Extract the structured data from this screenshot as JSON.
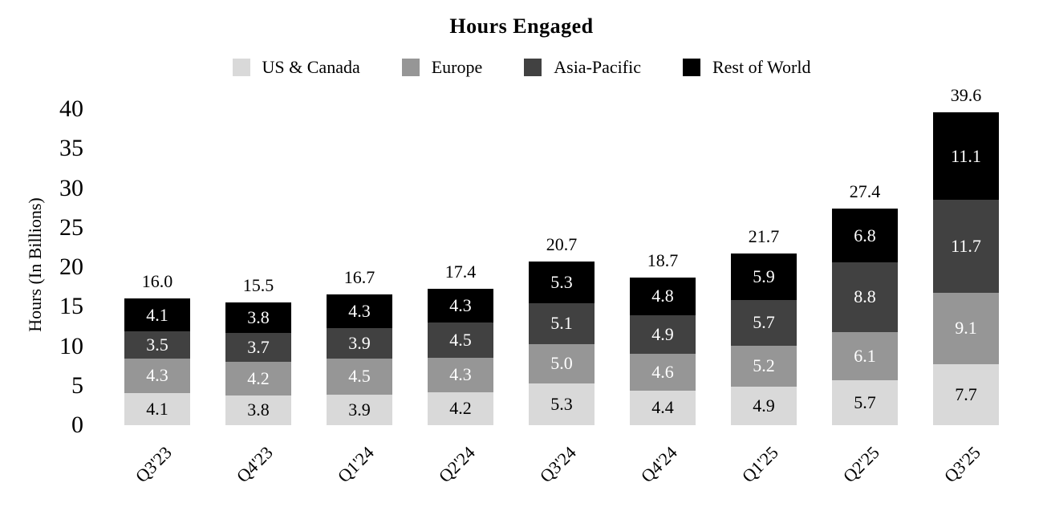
{
  "title": "Hours Engaged",
  "y_axis": {
    "label": "Hours (In Billions)",
    "ticks": [
      0,
      5,
      10,
      15,
      20,
      25,
      30,
      35,
      40
    ]
  },
  "chart_data": {
    "type": "bar",
    "stacked": true,
    "title": "Hours Engaged",
    "xlabel": "",
    "ylabel": "Hours (In Billions)",
    "ylim": [
      0,
      40
    ],
    "grid": false,
    "legend_position": "top-center",
    "categories": [
      "Q3'23",
      "Q4'23",
      "Q1'24",
      "Q2'24",
      "Q3'24",
      "Q4'24",
      "Q1'25",
      "Q2'25",
      "Q3'25"
    ],
    "series": [
      {
        "name": "US & Canada",
        "color": "#d9d9d9",
        "label_color": "#000000",
        "values": [
          4.1,
          3.8,
          3.9,
          4.2,
          5.3,
          4.4,
          4.9,
          5.7,
          7.7
        ]
      },
      {
        "name": "Europe",
        "color": "#969696",
        "label_color": "#ffffff",
        "values": [
          4.3,
          4.2,
          4.5,
          4.3,
          5.0,
          4.6,
          5.2,
          6.1,
          9.1
        ]
      },
      {
        "name": "Asia-Pacific",
        "color": "#414141",
        "label_color": "#ffffff",
        "values": [
          3.5,
          3.7,
          3.9,
          4.5,
          5.1,
          4.9,
          5.7,
          8.8,
          11.7
        ]
      },
      {
        "name": "Rest of World",
        "color": "#000000",
        "label_color": "#ffffff",
        "values": [
          4.1,
          3.8,
          4.3,
          4.3,
          5.3,
          4.8,
          5.9,
          6.8,
          11.1
        ]
      }
    ],
    "totals": [
      "16.0",
      "15.5",
      "16.7",
      "17.4",
      "20.7",
      "18.7",
      "21.7",
      "27.4",
      "39.6"
    ]
  }
}
